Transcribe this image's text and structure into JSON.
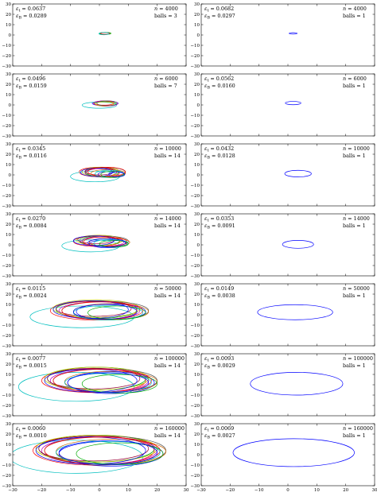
{
  "palette": [
    "#0000ff",
    "#00aa00",
    "#ff0000",
    "#00bfbf",
    "#bf00bf",
    "#bfbf00",
    "#555555",
    "#cc6600",
    "#990033"
  ],
  "chart_data": {
    "type": "line",
    "layout": "7 rows x 2 columns of small-multiple panels",
    "xlim": [
      -30,
      30
    ],
    "ylim": [
      -30,
      30
    ],
    "xticks": [
      -30,
      -20,
      -10,
      0,
      10,
      20,
      30
    ],
    "yticks": [
      -30,
      -20,
      -10,
      0,
      10,
      20,
      30
    ],
    "grid": false,
    "panels": [
      {
        "row": 0,
        "col": 0,
        "eps_t": "0.0637",
        "eps_B": "0.0289",
        "n": "4000",
        "balls": "3",
        "ellipses": [
          [
            2,
            1.5,
            2,
            1,
            1
          ],
          [
            2,
            1.5,
            1.6,
            0.8,
            2
          ],
          [
            1.6,
            1.3,
            1.8,
            1.1,
            3
          ]
        ]
      },
      {
        "row": 0,
        "col": 1,
        "eps_t": "0.0682",
        "eps_B": "0.0297",
        "n": "4000",
        "balls": "1",
        "ellipses": [
          [
            1.8,
            1.5,
            1.4,
            0.7,
            0
          ]
        ]
      },
      {
        "row": 1,
        "col": 0,
        "eps_t": "0.0496",
        "eps_B": "0.0159",
        "n": "6000",
        "balls": "7",
        "ellipses": [
          [
            2,
            1.5,
            4.5,
            2.3,
            0
          ],
          [
            2,
            1.2,
            3.8,
            2.2,
            1
          ],
          [
            1.5,
            1.8,
            3.6,
            2,
            2
          ],
          [
            0,
            -0.2,
            6,
            3,
            3
          ],
          [
            2.2,
            1.4,
            4.2,
            2.6,
            4
          ],
          [
            1.8,
            1,
            3.2,
            2,
            5
          ],
          [
            2.6,
            1.6,
            3.5,
            2.4,
            6
          ]
        ]
      },
      {
        "row": 1,
        "col": 1,
        "eps_t": "0.0562",
        "eps_B": "0.0160",
        "n": "6000",
        "balls": "1",
        "ellipses": [
          [
            1.8,
            1.8,
            2.7,
            1.6,
            0
          ]
        ]
      },
      {
        "row": 2,
        "col": 0,
        "eps_t": "0.0345",
        "eps_B": "0.0116",
        "n": "10000",
        "balls": "14",
        "ellipses": [
          [
            4,
            0.5,
            4.5,
            2.8,
            0
          ],
          [
            1,
            2.5,
            5.5,
            4.2,
            1
          ],
          [
            -0.5,
            2.8,
            6.5,
            4.6,
            2
          ],
          [
            -1.5,
            -1.5,
            8.5,
            5.2,
            3
          ],
          [
            1,
            2,
            6,
            4,
            4
          ],
          [
            0.5,
            3,
            6.5,
            4.5,
            5
          ],
          [
            2,
            2.5,
            7,
            4.8,
            6
          ],
          [
            3,
            1.5,
            6,
            3.6,
            7
          ],
          [
            0,
            3.5,
            5,
            3.5,
            8
          ],
          [
            -1,
            2.5,
            5.5,
            4,
            0
          ],
          [
            2.5,
            3,
            6.5,
            4.4,
            2
          ],
          [
            3.5,
            1,
            5,
            3.5,
            3
          ],
          [
            4.5,
            0.5,
            4,
            3,
            1
          ],
          [
            6,
            0.5,
            2.8,
            2.4,
            0
          ]
        ]
      },
      {
        "row": 2,
        "col": 1,
        "eps_t": "0.0432",
        "eps_B": "0.0128",
        "n": "10000",
        "balls": "1",
        "ellipses": [
          [
            3.5,
            1.2,
            4.6,
            3.2,
            0
          ]
        ]
      },
      {
        "row": 3,
        "col": 0,
        "eps_t": "0.0270",
        "eps_B": "0.0084",
        "n": "14000",
        "balls": "14",
        "ellipses": [
          [
            3,
            1,
            6.5,
            3.8,
            0
          ],
          [
            0,
            4,
            7,
            4.5,
            1
          ],
          [
            -1,
            3.5,
            8,
            5,
            2
          ],
          [
            -3,
            -1,
            10,
            5.8,
            3
          ],
          [
            1,
            3,
            7.5,
            4.6,
            4
          ],
          [
            0,
            4.5,
            8,
            4.8,
            5
          ],
          [
            2,
            3.5,
            8,
            5,
            6
          ],
          [
            3.5,
            2.5,
            7,
            4,
            7
          ],
          [
            -1,
            5,
            6.5,
            3.8,
            8
          ],
          [
            -2,
            4,
            7,
            4.6,
            0
          ],
          [
            2,
            3,
            7.5,
            4.6,
            2
          ],
          [
            4,
            1.5,
            6,
            3.6,
            3
          ],
          [
            5,
            1,
            5,
            3.2,
            1
          ],
          [
            2.5,
            2,
            6.5,
            4,
            0
          ]
        ]
      },
      {
        "row": 3,
        "col": 1,
        "eps_t": "0.0353",
        "eps_B": "0.0091",
        "n": "14000",
        "balls": "1",
        "ellipses": [
          [
            3.5,
            0.5,
            5.4,
            3.8,
            0
          ]
        ]
      },
      {
        "row": 4,
        "col": 0,
        "eps_t": "0.0115",
        "eps_B": "0.0024",
        "n": "50000",
        "balls": "14",
        "ellipses": [
          [
            4,
            3,
            12,
            7.5,
            0
          ],
          [
            -1,
            5,
            14,
            8.5,
            1
          ],
          [
            -2,
            4,
            15,
            9,
            2
          ],
          [
            -6,
            -2,
            18,
            10.5,
            3
          ],
          [
            0,
            4,
            14,
            8.5,
            4
          ],
          [
            -1,
            6,
            15,
            8.5,
            5
          ],
          [
            2,
            4,
            15,
            9,
            6
          ],
          [
            4,
            3,
            13,
            7.8,
            7
          ],
          [
            -2,
            6,
            13,
            7.5,
            8
          ],
          [
            -3,
            5,
            13,
            8.5,
            0
          ],
          [
            1,
            4,
            14,
            8.5,
            2
          ],
          [
            3,
            2,
            12,
            7,
            3
          ],
          [
            6,
            2,
            10,
            6.5,
            1
          ],
          [
            2,
            3,
            11,
            7,
            0
          ]
        ]
      },
      {
        "row": 4,
        "col": 1,
        "eps_t": "0.0149",
        "eps_B": "0.0038",
        "n": "50000",
        "balls": "1",
        "ellipses": [
          [
            2.5,
            2.5,
            13,
            7.3,
            0
          ]
        ]
      },
      {
        "row": 5,
        "col": 0,
        "eps_t": "0.0077",
        "eps_B": "0.0015",
        "n": "100000",
        "balls": "14",
        "ellipses": [
          [
            4,
            2,
            15,
            10.5,
            0
          ],
          [
            -1,
            6,
            17,
            11,
            1
          ],
          [
            -2,
            4,
            18,
            11.5,
            2
          ],
          [
            -8,
            -2,
            20,
            14,
            3
          ],
          [
            0,
            4,
            17,
            11,
            4
          ],
          [
            -1,
            6,
            18,
            11,
            5
          ],
          [
            2,
            4,
            18,
            11.5,
            6
          ],
          [
            4,
            3,
            16,
            10,
            7
          ],
          [
            -2,
            6,
            16,
            10,
            8
          ],
          [
            -3,
            4,
            16,
            11,
            0
          ],
          [
            1,
            4,
            17,
            11,
            2
          ],
          [
            3,
            2,
            15,
            9,
            3
          ],
          [
            7,
            1,
            13,
            9,
            1
          ],
          [
            3,
            2,
            14,
            9.5,
            0
          ]
        ]
      },
      {
        "row": 5,
        "col": 1,
        "eps_t": "0.0093",
        "eps_B": "0.0029",
        "n": "100000",
        "balls": "1",
        "ellipses": [
          [
            3,
            1,
            16,
            11,
            0
          ]
        ]
      },
      {
        "row": 6,
        "col": 0,
        "eps_t": "0.0060",
        "eps_B": "0.0010",
        "n": "160000",
        "balls": "14",
        "ellipses": [
          [
            4,
            1,
            18,
            12,
            0
          ],
          [
            -1,
            6,
            20,
            13,
            1
          ],
          [
            -2,
            4,
            21,
            14,
            2
          ],
          [
            -8,
            -2,
            23,
            16,
            3
          ],
          [
            0,
            4,
            20,
            13,
            4
          ],
          [
            -1,
            6,
            21,
            13,
            5
          ],
          [
            2,
            4,
            21,
            14,
            6
          ],
          [
            4,
            3,
            19,
            12,
            7
          ],
          [
            -2,
            6,
            19,
            12,
            8
          ],
          [
            -3,
            4,
            19,
            13,
            0
          ],
          [
            1,
            4,
            20,
            13,
            2
          ],
          [
            3,
            2,
            18,
            11,
            3
          ],
          [
            7,
            1,
            15,
            10.5,
            1
          ],
          [
            3,
            2,
            17,
            11.5,
            0
          ]
        ]
      },
      {
        "row": 6,
        "col": 1,
        "eps_t": "0.0069",
        "eps_B": "0.0027",
        "n": "160000",
        "balls": "1",
        "ellipses": [
          [
            2,
            2,
            21,
            13.5,
            0
          ]
        ]
      }
    ]
  }
}
